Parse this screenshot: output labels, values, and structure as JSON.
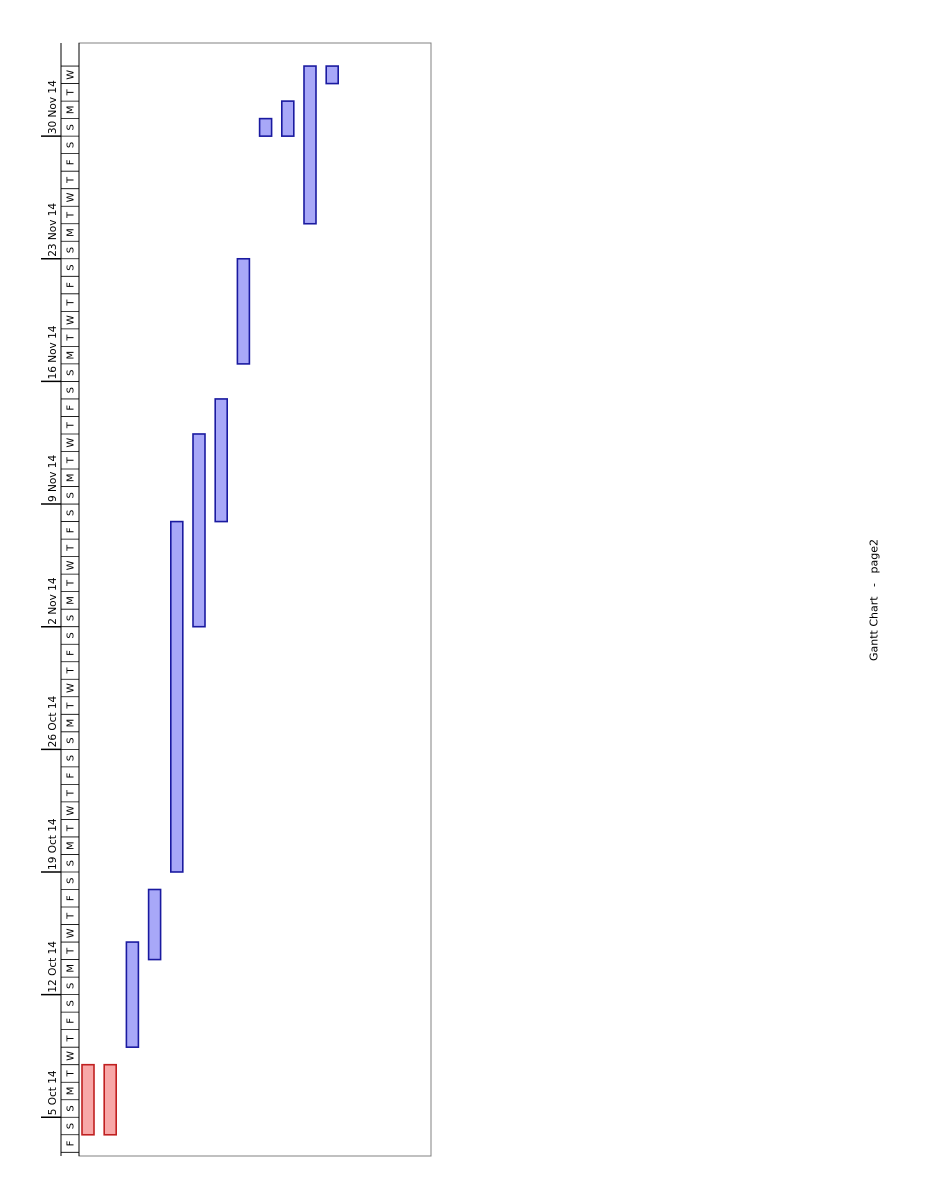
{
  "chart_data": {
    "type": "gantt",
    "orientation": "rotated-90-ccw",
    "timeline_start": "2014-10-03",
    "timeline_end": "2014-12-04",
    "week_labels": [
      "5 Oct 14",
      "12 Oct 14",
      "19 Oct 14",
      "26 Oct 14",
      "2 Nov 14",
      "9 Nov 14",
      "16 Nov 14",
      "23 Nov 14",
      "30 Nov 14"
    ],
    "day_letters": [
      "S",
      "M",
      "T",
      "W",
      "T",
      "F",
      "S"
    ],
    "tasks": [
      {
        "start": "2014-10-04",
        "end": "2014-10-08",
        "style": "critical"
      },
      {
        "start": "2014-10-04",
        "end": "2014-10-08",
        "style": "normal-red"
      },
      {
        "start": "2014-10-09",
        "end": "2014-10-15",
        "style": "normal"
      },
      {
        "start": "2014-10-14",
        "end": "2014-10-18",
        "style": "normal"
      },
      {
        "start": "2014-10-19",
        "end": "2014-11-08",
        "style": "normal"
      },
      {
        "start": "2014-11-02",
        "end": "2014-11-13",
        "style": "normal"
      },
      {
        "start": "2014-11-08",
        "end": "2014-11-15",
        "style": "normal"
      },
      {
        "start": "2014-11-17",
        "end": "2014-11-23",
        "style": "normal"
      },
      {
        "start": "2014-11-30",
        "end": "2014-12-01",
        "style": "normal"
      },
      {
        "start": "2014-11-30",
        "end": "2014-12-02",
        "style": "normal"
      },
      {
        "start": "2014-11-25",
        "end": "2014-12-04",
        "style": "normal"
      },
      {
        "start": "2014-12-03",
        "end": "2014-12-04",
        "style": "normal"
      }
    ],
    "colors": {
      "bar_fill": "#a8a8f8",
      "bar_stroke": "#1a1aa0",
      "critical_fill": "#f8a8a8",
      "critical_stroke": "#c02020",
      "grid": "#000000"
    }
  },
  "footer": {
    "title": "Gantt Chart",
    "separator": "-",
    "page": "page2"
  }
}
